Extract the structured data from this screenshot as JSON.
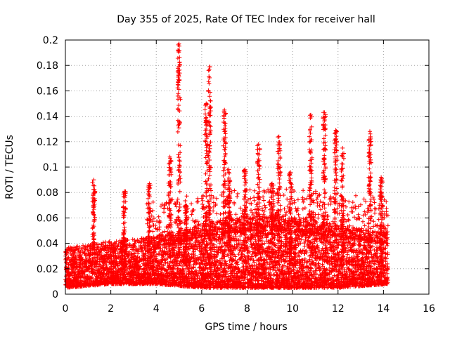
{
  "chart_data": {
    "type": "scatter",
    "title": "Day 355 of 2025, Rate Of TEC Index for receiver hall",
    "xlabel": "GPS time / hours",
    "ylabel": "ROTI / TECUs",
    "xlim": [
      0,
      16
    ],
    "ylim": [
      0,
      0.2
    ],
    "x_ticks": [
      0,
      2,
      4,
      6,
      8,
      10,
      12,
      14,
      16
    ],
    "y_ticks": [
      0,
      0.02,
      0.04,
      0.06,
      0.08,
      0.1,
      0.12,
      0.14,
      0.16,
      0.18,
      0.2
    ],
    "grid": true,
    "marker": "+",
    "color": "#ff0000",
    "data_extent_hours": [
      0,
      14.2
    ],
    "baseline_band": [
      {
        "x": 0.0,
        "low": 0.005,
        "high": 0.03
      },
      {
        "x": 2.0,
        "low": 0.008,
        "high": 0.035
      },
      {
        "x": 4.0,
        "low": 0.008,
        "high": 0.038
      },
      {
        "x": 6.0,
        "low": 0.005,
        "high": 0.045
      },
      {
        "x": 8.0,
        "low": 0.005,
        "high": 0.05
      },
      {
        "x": 10.0,
        "low": 0.005,
        "high": 0.05
      },
      {
        "x": 12.0,
        "low": 0.005,
        "high": 0.045
      },
      {
        "x": 14.2,
        "low": 0.008,
        "high": 0.04
      }
    ],
    "spikes": [
      {
        "x": 1.25,
        "peak": 0.09
      },
      {
        "x": 2.6,
        "peak": 0.081
      },
      {
        "x": 3.7,
        "peak": 0.087
      },
      {
        "x": 4.6,
        "peak": 0.108
      },
      {
        "x": 5.0,
        "peak": 0.197
      },
      {
        "x": 5.3,
        "peak": 0.07
      },
      {
        "x": 6.2,
        "peak": 0.15
      },
      {
        "x": 6.35,
        "peak": 0.179
      },
      {
        "x": 7.0,
        "peak": 0.145
      },
      {
        "x": 7.2,
        "peak": 0.098
      },
      {
        "x": 7.9,
        "peak": 0.098
      },
      {
        "x": 8.5,
        "peak": 0.118
      },
      {
        "x": 9.1,
        "peak": 0.087
      },
      {
        "x": 9.4,
        "peak": 0.124
      },
      {
        "x": 9.9,
        "peak": 0.096
      },
      {
        "x": 10.8,
        "peak": 0.141
      },
      {
        "x": 11.4,
        "peak": 0.143
      },
      {
        "x": 11.9,
        "peak": 0.129
      },
      {
        "x": 12.2,
        "peak": 0.115
      },
      {
        "x": 13.4,
        "peak": 0.128
      },
      {
        "x": 13.9,
        "peak": 0.092
      }
    ]
  }
}
